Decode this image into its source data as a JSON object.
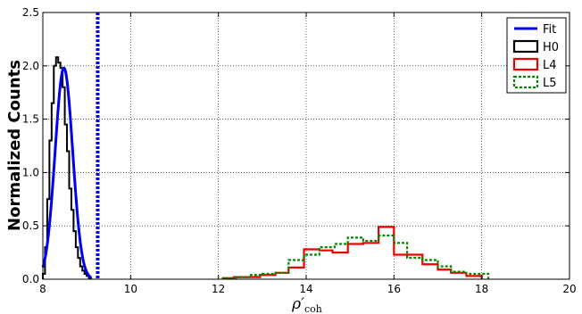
{
  "chart_data": {
    "type": "step-histogram",
    "title": "",
    "xlabel": "ρ′",
    "xlabel_sub": "coh",
    "ylabel": "Normalized Counts",
    "xlim": [
      8,
      20
    ],
    "ylim": [
      0,
      2.5
    ],
    "xticks": [
      8,
      10,
      12,
      14,
      16,
      18,
      20
    ],
    "yticks": [
      0.0,
      0.5,
      1.0,
      1.5,
      2.0,
      2.5
    ],
    "xtick_labels": [
      "8",
      "10",
      "12",
      "14",
      "16",
      "18",
      "20"
    ],
    "ytick_labels": [
      "0.0",
      "0.5",
      "1.0",
      "1.5",
      "2.0",
      "2.5"
    ],
    "grid": true,
    "legend_position": "top-right",
    "threshold_line": {
      "x": 9.25,
      "color": "#0000ee",
      "style": "dotted"
    },
    "series": [
      {
        "name": "Fit",
        "kind": "line",
        "color": "#0000ee",
        "mu": 8.48,
        "sigma": 0.2,
        "amplitude": 1.98,
        "x_range": [
          8.0,
          9.1
        ]
      },
      {
        "name": "H0",
        "kind": "step",
        "color": "#000000",
        "style": "solid",
        "edges": [
          8.0,
          8.05,
          8.1,
          8.15,
          8.2,
          8.25,
          8.3,
          8.35,
          8.4,
          8.45,
          8.5,
          8.55,
          8.6,
          8.65,
          8.7,
          8.75,
          8.8,
          8.85,
          8.9,
          8.95,
          9.0,
          9.05,
          9.1
        ],
        "values": [
          0.05,
          0.3,
          0.75,
          1.3,
          1.65,
          2.0,
          2.08,
          2.03,
          1.98,
          1.8,
          1.45,
          1.2,
          0.85,
          0.65,
          0.45,
          0.3,
          0.2,
          0.12,
          0.08,
          0.05,
          0.03,
          0.01
        ]
      },
      {
        "name": "L4",
        "kind": "step",
        "color": "#ee0000",
        "style": "solid",
        "edges": [
          12.1,
          12.35,
          12.65,
          12.95,
          13.3,
          13.6,
          13.95,
          14.3,
          14.6,
          14.95,
          15.3,
          15.65,
          16.0,
          16.3,
          16.65,
          17.0,
          17.3,
          17.65,
          18.0
        ],
        "values": [
          0.01,
          0.02,
          0.02,
          0.04,
          0.06,
          0.11,
          0.28,
          0.27,
          0.25,
          0.33,
          0.34,
          0.49,
          0.23,
          0.23,
          0.14,
          0.09,
          0.06,
          0.03
        ]
      },
      {
        "name": "L5",
        "kind": "step",
        "color": "#008800",
        "style": "dotted",
        "edges": [
          12.1,
          12.4,
          12.7,
          13.0,
          13.3,
          13.6,
          13.95,
          14.3,
          14.65,
          14.95,
          15.3,
          15.65,
          16.0,
          16.3,
          16.65,
          17.0,
          17.3,
          17.65,
          18.15
        ],
        "values": [
          0.01,
          0.02,
          0.04,
          0.05,
          0.06,
          0.18,
          0.23,
          0.3,
          0.33,
          0.39,
          0.36,
          0.41,
          0.34,
          0.2,
          0.18,
          0.12,
          0.07,
          0.05
        ]
      }
    ]
  }
}
